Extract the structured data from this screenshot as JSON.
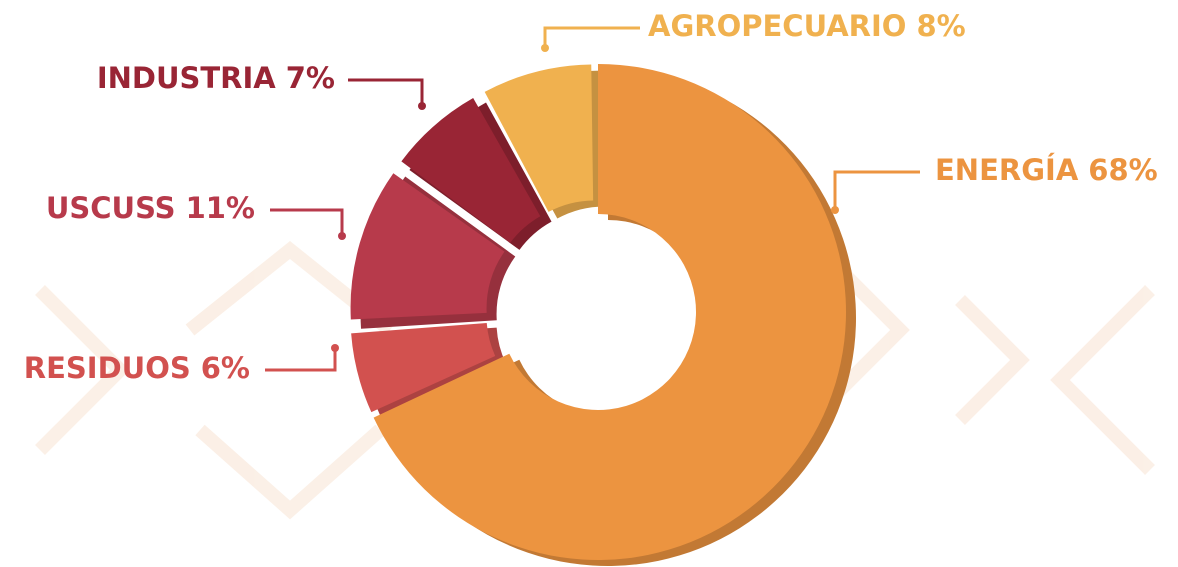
{
  "chart_data": {
    "type": "donut",
    "categories": [
      "ENERGÍA",
      "RESIDUOS",
      "USCUSS",
      "INDUSTRIA",
      "AGROPECUARIO"
    ],
    "values": [
      68,
      6,
      11,
      7,
      8
    ],
    "value_labels": [
      "68%",
      "6%",
      "11%",
      "7%",
      "8%"
    ],
    "colors": [
      "#ec9440",
      "#d2514f",
      "#b73a4b",
      "#992535",
      "#f0b14f"
    ]
  }
}
